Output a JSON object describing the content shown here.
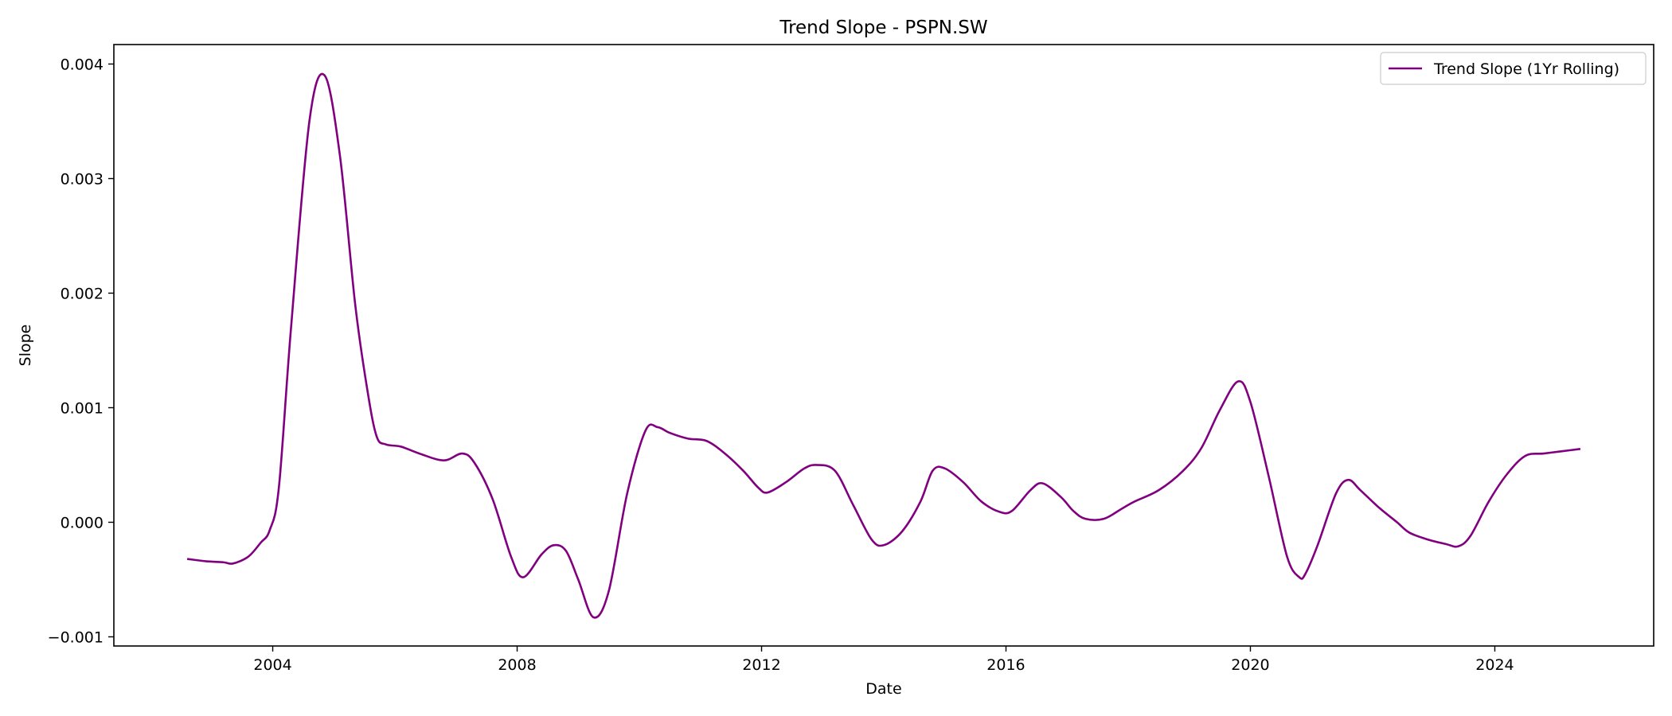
{
  "chart_data": {
    "type": "line",
    "title": "Trend Slope - PSPN.SW",
    "xlabel": "Date",
    "ylabel": "Slope",
    "xlim": [
      2001.4,
      2026.6
    ],
    "ylim": [
      -0.00108,
      0.00417
    ],
    "x_ticks": [
      2004,
      2008,
      2012,
      2016,
      2020,
      2024
    ],
    "x_tick_labels": [
      "2004",
      "2008",
      "2012",
      "2016",
      "2020",
      "2024"
    ],
    "y_ticks": [
      -0.001,
      0.0,
      0.001,
      0.002,
      0.003,
      0.004
    ],
    "y_tick_labels": [
      "−0.001",
      "0.000",
      "0.001",
      "0.002",
      "0.003",
      "0.004"
    ],
    "grid": false,
    "legend_position": "top-right",
    "series": [
      {
        "name": "Trend Slope (1Yr Rolling)",
        "color": "#800080",
        "x": [
          2002.6,
          2002.9,
          2003.2,
          2003.35,
          2003.6,
          2003.8,
          2003.95,
          2004.1,
          2004.3,
          2004.6,
          2004.85,
          2005.1,
          2005.35,
          2005.55,
          2005.7,
          2005.85,
          2006.1,
          2006.4,
          2006.8,
          2007.1,
          2007.3,
          2007.6,
          2007.9,
          2008.1,
          2008.4,
          2008.6,
          2008.8,
          2009.0,
          2009.25,
          2009.5,
          2009.8,
          2010.1,
          2010.3,
          2010.5,
          2010.8,
          2011.1,
          2011.4,
          2011.7,
          2011.95,
          2012.1,
          2012.4,
          2012.7,
          2012.9,
          2013.2,
          2013.5,
          2013.8,
          2014.0,
          2014.3,
          2014.6,
          2014.8,
          2015.0,
          2015.3,
          2015.6,
          2015.9,
          2016.1,
          2016.4,
          2016.6,
          2016.9,
          2017.1,
          2017.3,
          2017.6,
          2017.9,
          2018.1,
          2018.5,
          2018.9,
          2019.2,
          2019.5,
          2019.8,
          2020.0,
          2020.3,
          2020.6,
          2020.8,
          2020.9,
          2021.1,
          2021.4,
          2021.6,
          2021.8,
          2022.1,
          2022.4,
          2022.6,
          2022.9,
          2023.2,
          2023.4,
          2023.6,
          2023.9,
          2024.2,
          2024.5,
          2024.8,
          2025.1,
          2025.4
        ],
        "y": [
          -0.00032,
          -0.00034,
          -0.00035,
          -0.00036,
          -0.0003,
          -0.00018,
          -7e-05,
          0.0003,
          0.0017,
          0.0035,
          0.0039,
          0.0032,
          0.0019,
          0.00115,
          0.00075,
          0.00068,
          0.00066,
          0.0006,
          0.00054,
          0.0006,
          0.00052,
          0.0002,
          -0.0003,
          -0.00048,
          -0.00028,
          -0.0002,
          -0.00025,
          -0.0005,
          -0.00083,
          -0.0006,
          0.00025,
          0.0008,
          0.00083,
          0.00078,
          0.00073,
          0.00071,
          0.0006,
          0.00045,
          0.0003,
          0.00026,
          0.00035,
          0.00047,
          0.0005,
          0.00045,
          0.00015,
          -0.00015,
          -0.0002,
          -8e-05,
          0.00018,
          0.00045,
          0.00047,
          0.00035,
          0.00018,
          9e-05,
          0.0001,
          0.00028,
          0.00034,
          0.00022,
          0.0001,
          3e-05,
          3e-05,
          0.00012,
          0.00018,
          0.00028,
          0.00045,
          0.00065,
          0.00098,
          0.00123,
          0.00105,
          0.0004,
          -0.0003,
          -0.00048,
          -0.00045,
          -0.0002,
          0.00025,
          0.00037,
          0.00028,
          0.00013,
          0.0,
          -9e-05,
          -0.00015,
          -0.00019,
          -0.00021,
          -0.00012,
          0.00018,
          0.00042,
          0.00058,
          0.0006,
          0.00062,
          0.00064
        ]
      }
    ]
  }
}
